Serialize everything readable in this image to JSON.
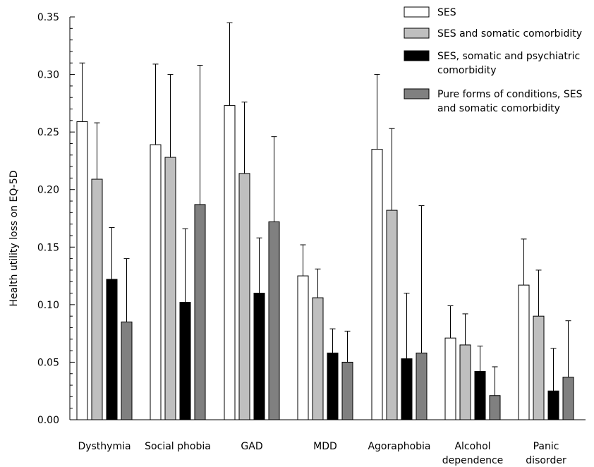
{
  "chart_data": {
    "type": "bar",
    "ylabel": "Health utility loss on EQ-5D",
    "ylim": [
      0,
      0.35
    ],
    "yticks": [
      "0.00",
      "0.05",
      "0.10",
      "0.15",
      "0.20",
      "0.25",
      "0.30",
      "0.35"
    ],
    "categories": [
      [
        "Dysthymia"
      ],
      [
        "Social phobia"
      ],
      [
        "GAD"
      ],
      [
        "MDD"
      ],
      [
        "Agoraphobia"
      ],
      [
        "Alcohol",
        "dependence"
      ],
      [
        "Panic",
        "disorder"
      ]
    ],
    "legend_position": "top-right",
    "series": [
      {
        "name": [
          "SES"
        ],
        "color": "#ffffff",
        "values": [
          0.259,
          0.239,
          0.273,
          0.125,
          0.235,
          0.071,
          0.117
        ],
        "error_upper": [
          0.31,
          0.309,
          0.345,
          0.152,
          0.3,
          0.099,
          0.157
        ]
      },
      {
        "name": [
          "SES and somatic comorbidity"
        ],
        "color": "#bfbfbf",
        "values": [
          0.209,
          0.228,
          0.214,
          0.106,
          0.182,
          0.065,
          0.09
        ],
        "error_upper": [
          0.258,
          0.3,
          0.276,
          0.131,
          0.253,
          0.092,
          0.13
        ]
      },
      {
        "name": [
          "SES, somatic and psychiatric",
          "comorbidity"
        ],
        "color": "#000000",
        "values": [
          0.122,
          0.102,
          0.11,
          0.058,
          0.053,
          0.042,
          0.025
        ],
        "error_upper": [
          0.167,
          0.166,
          0.158,
          0.079,
          0.11,
          0.064,
          0.062
        ]
      },
      {
        "name": [
          "Pure forms of conditions, SES",
          "and somatic comorbidity"
        ],
        "color": "#808080",
        "values": [
          0.085,
          0.187,
          0.172,
          0.05,
          0.058,
          0.021,
          0.037
        ],
        "error_upper": [
          0.14,
          0.308,
          0.246,
          0.077,
          0.186,
          0.046,
          0.086
        ]
      }
    ]
  }
}
